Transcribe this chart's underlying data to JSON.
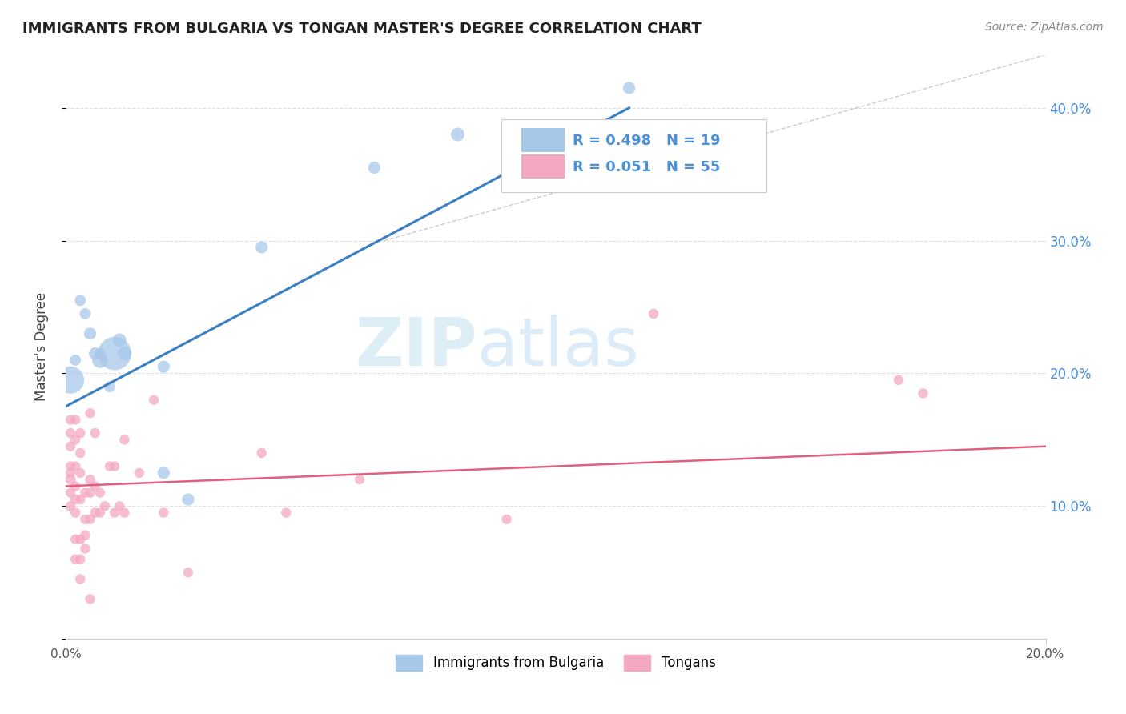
{
  "title": "IMMIGRANTS FROM BULGARIA VS TONGAN MASTER'S DEGREE CORRELATION CHART",
  "source": "Source: ZipAtlas.com",
  "ylabel": "Master's Degree",
  "xlim": [
    0.0,
    0.2
  ],
  "ylim": [
    0.0,
    0.44
  ],
  "x_ticks": [
    0.0,
    0.2
  ],
  "x_tick_labels": [
    "0.0%",
    "20.0%"
  ],
  "y_ticks": [
    0.0,
    0.1,
    0.2,
    0.3,
    0.4
  ],
  "right_y_tick_labels": [
    "",
    "10.0%",
    "20.0%",
    "30.0%",
    "40.0%"
  ],
  "legend_label1": "Immigrants from Bulgaria",
  "legend_label2": "Tongans",
  "r1": 0.498,
  "n1": 19,
  "r2": 0.051,
  "n2": 55,
  "color_blue": "#a8c8ea",
  "color_pink": "#f4a8c0",
  "line_blue": "#3a7fc1",
  "line_pink": "#e06080",
  "blue_line_x": [
    0.0,
    0.115
  ],
  "blue_line_y": [
    0.175,
    0.4
  ],
  "pink_line_x": [
    0.0,
    0.2
  ],
  "pink_line_y": [
    0.115,
    0.145
  ],
  "ref_line_x": [
    0.065,
    0.2
  ],
  "ref_line_y": [
    0.3,
    0.44
  ],
  "blue_points": [
    [
      0.001,
      0.195
    ],
    [
      0.002,
      0.21
    ],
    [
      0.003,
      0.255
    ],
    [
      0.004,
      0.245
    ],
    [
      0.005,
      0.23
    ],
    [
      0.006,
      0.215
    ],
    [
      0.007,
      0.215
    ],
    [
      0.007,
      0.21
    ],
    [
      0.009,
      0.19
    ],
    [
      0.01,
      0.215
    ],
    [
      0.011,
      0.225
    ],
    [
      0.012,
      0.215
    ],
    [
      0.02,
      0.125
    ],
    [
      0.02,
      0.205
    ],
    [
      0.025,
      0.105
    ],
    [
      0.04,
      0.295
    ],
    [
      0.063,
      0.355
    ],
    [
      0.08,
      0.38
    ],
    [
      0.115,
      0.415
    ]
  ],
  "blue_sizes": [
    600,
    100,
    100,
    100,
    120,
    120,
    100,
    200,
    100,
    900,
    150,
    150,
    120,
    120,
    120,
    120,
    120,
    150,
    120
  ],
  "pink_points": [
    [
      0.001,
      0.165
    ],
    [
      0.001,
      0.155
    ],
    [
      0.001,
      0.145
    ],
    [
      0.001,
      0.13
    ],
    [
      0.001,
      0.125
    ],
    [
      0.001,
      0.12
    ],
    [
      0.001,
      0.11
    ],
    [
      0.001,
      0.1
    ],
    [
      0.002,
      0.165
    ],
    [
      0.002,
      0.15
    ],
    [
      0.002,
      0.13
    ],
    [
      0.002,
      0.115
    ],
    [
      0.002,
      0.105
    ],
    [
      0.002,
      0.095
    ],
    [
      0.002,
      0.075
    ],
    [
      0.002,
      0.06
    ],
    [
      0.003,
      0.155
    ],
    [
      0.003,
      0.14
    ],
    [
      0.003,
      0.125
    ],
    [
      0.003,
      0.105
    ],
    [
      0.003,
      0.075
    ],
    [
      0.003,
      0.06
    ],
    [
      0.003,
      0.045
    ],
    [
      0.004,
      0.11
    ],
    [
      0.004,
      0.09
    ],
    [
      0.004,
      0.078
    ],
    [
      0.004,
      0.068
    ],
    [
      0.005,
      0.17
    ],
    [
      0.005,
      0.12
    ],
    [
      0.005,
      0.11
    ],
    [
      0.005,
      0.09
    ],
    [
      0.005,
      0.03
    ],
    [
      0.006,
      0.155
    ],
    [
      0.006,
      0.115
    ],
    [
      0.006,
      0.095
    ],
    [
      0.007,
      0.11
    ],
    [
      0.007,
      0.095
    ],
    [
      0.008,
      0.1
    ],
    [
      0.009,
      0.13
    ],
    [
      0.01,
      0.13
    ],
    [
      0.01,
      0.095
    ],
    [
      0.011,
      0.1
    ],
    [
      0.012,
      0.15
    ],
    [
      0.012,
      0.095
    ],
    [
      0.015,
      0.125
    ],
    [
      0.018,
      0.18
    ],
    [
      0.02,
      0.095
    ],
    [
      0.025,
      0.05
    ],
    [
      0.04,
      0.14
    ],
    [
      0.045,
      0.095
    ],
    [
      0.06,
      0.12
    ],
    [
      0.09,
      0.09
    ],
    [
      0.12,
      0.245
    ],
    [
      0.17,
      0.195
    ],
    [
      0.175,
      0.185
    ]
  ],
  "pink_sizes": [
    80,
    80,
    80,
    80,
    80,
    90,
    80,
    80,
    80,
    80,
    80,
    80,
    80,
    80,
    80,
    80,
    80,
    80,
    80,
    80,
    80,
    80,
    80,
    80,
    80,
    80,
    80,
    80,
    80,
    80,
    80,
    80,
    80,
    80,
    80,
    80,
    80,
    80,
    80,
    80,
    80,
    80,
    80,
    80,
    80,
    80,
    80,
    80,
    80,
    80,
    80,
    80,
    80,
    80,
    80
  ]
}
